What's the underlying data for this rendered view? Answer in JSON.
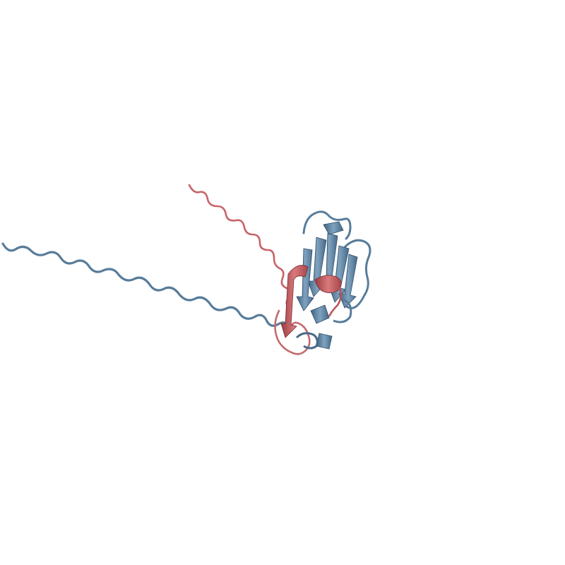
{
  "scene": {
    "background": "#ffffff",
    "chains": [
      {
        "id": "A",
        "color": "#5b7f9e",
        "highlight": "#86a9c4",
        "shade": "#3f6482"
      },
      {
        "id": "B",
        "color": "#c45a5e",
        "highlight": "#e08f90",
        "shade": "#9a3c41"
      }
    ]
  }
}
